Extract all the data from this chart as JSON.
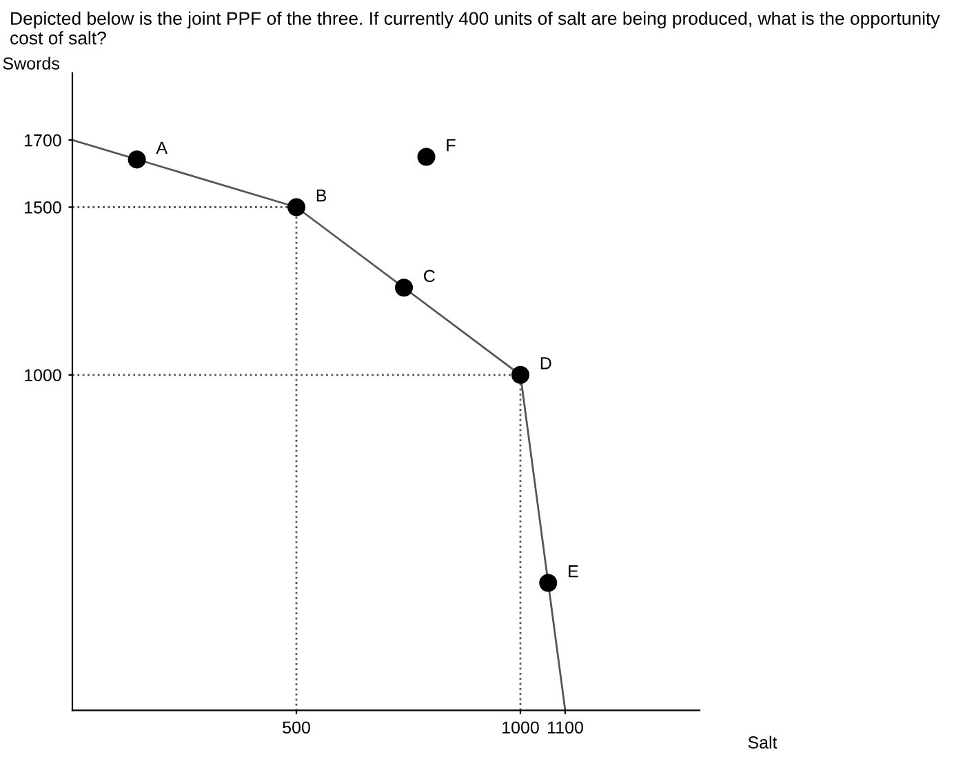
{
  "chart_data": {
    "type": "line",
    "title": "Depicted below is the joint PPF of the three. If currently 400 units of salt are being produced, what is the opportunity cost of salt?",
    "xlabel": "Salt",
    "ylabel": "Swords",
    "series": [
      {
        "color": "#555555",
        "line_style": "solid",
        "x": [
          0,
          500,
          1000,
          1100
        ],
        "values": [
          1700,
          1500,
          1000,
          0
        ]
      },
      {
        "color": "#555555",
        "line_style": "dotted",
        "x": [
          0,
          500,
          500
        ],
        "values": [
          1500,
          1500,
          0
        ]
      },
      {
        "color": "#555555",
        "line_style": "dotted",
        "x": [
          0,
          1000,
          1000
        ],
        "values": [
          1000,
          1000,
          0
        ]
      },
      {
        "type": "scatter",
        "color": "#000000",
        "marker": "circle",
        "x": [
          144,
          500,
          740,
          1000,
          1062,
          790
        ],
        "values": [
          1642,
          1500,
          1260,
          1000,
          380,
          1650
        ]
      }
    ],
    "annotations": [
      {
        "text": "A",
        "x": 144,
        "y": 1642
      },
      {
        "text": "B",
        "x": 500,
        "y": 1500
      },
      {
        "text": "C",
        "x": 740,
        "y": 1260
      },
      {
        "text": "D",
        "x": 1000,
        "y": 1000
      },
      {
        "text": "E",
        "x": 1062,
        "y": 380
      },
      {
        "text": "F",
        "x": 790,
        "y": 1650
      }
    ],
    "xlim": [
      0,
      1400
    ],
    "ylim": [
      0,
      1900
    ],
    "xticks": [
      500,
      1000,
      1100
    ],
    "yticks": [
      1000,
      1500,
      1700
    ],
    "grid": false,
    "legend": false
  }
}
